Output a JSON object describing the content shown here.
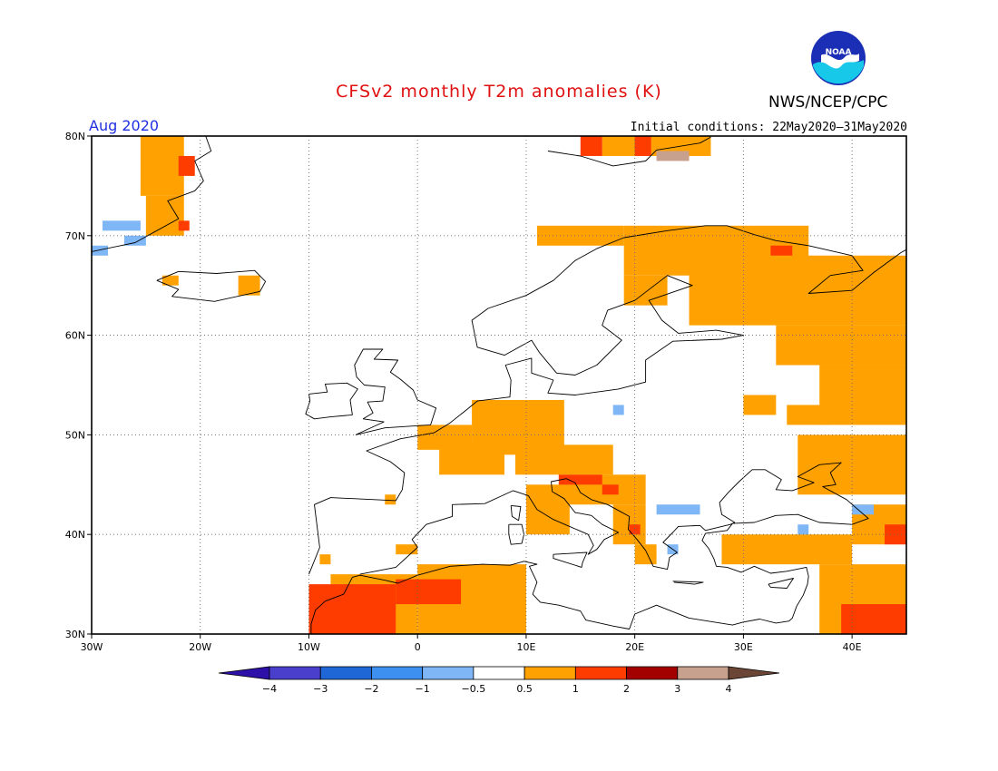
{
  "header": {
    "title": "CFSv2 monthly T2m anomalies (K)",
    "agency": "NWS/NCEP/CPC",
    "logo_text": "NOAA",
    "month": "Aug 2020",
    "initial_conditions": "Initial conditions: 22May2020–31May2020"
  },
  "map": {
    "lon_range": [
      -30,
      45
    ],
    "lat_range": [
      30,
      80
    ],
    "lon_ticks": [
      {
        "value": -30,
        "label": "30W"
      },
      {
        "value": -20,
        "label": "20W"
      },
      {
        "value": -10,
        "label": "10W"
      },
      {
        "value": 0,
        "label": "0"
      },
      {
        "value": 10,
        "label": "10E"
      },
      {
        "value": 20,
        "label": "20E"
      },
      {
        "value": 30,
        "label": "30E"
      },
      {
        "value": 40,
        "label": "40E"
      }
    ],
    "lat_ticks": [
      {
        "value": 30,
        "label": "30N"
      },
      {
        "value": 40,
        "label": "40N"
      },
      {
        "value": 50,
        "label": "50N"
      },
      {
        "value": 60,
        "label": "60N"
      },
      {
        "value": 70,
        "label": "70N"
      },
      {
        "value": 80,
        "label": "80N"
      }
    ],
    "grid": "dotted",
    "anomaly_regions": [
      {
        "cls": 6,
        "lon": [
          -25.5,
          -21.5
        ],
        "lat": [
          74,
          80
        ]
      },
      {
        "cls": 6,
        "lon": [
          -25,
          -21.5
        ],
        "lat": [
          70,
          74
        ]
      },
      {
        "cls": 7,
        "lon": [
          -22,
          -20.5
        ],
        "lat": [
          76,
          78
        ]
      },
      {
        "cls": 7,
        "lon": [
          -22,
          -21
        ],
        "lat": [
          70.5,
          71.5
        ]
      },
      {
        "cls": 4,
        "lon": [
          -29,
          -25.5
        ],
        "lat": [
          70.5,
          71.5
        ]
      },
      {
        "cls": 4,
        "lon": [
          -27,
          -25
        ],
        "lat": [
          69,
          70
        ]
      },
      {
        "cls": 4,
        "lon": [
          -30,
          -28.5
        ],
        "lat": [
          68,
          69
        ]
      },
      {
        "cls": 6,
        "lon": [
          -23.5,
          -22
        ],
        "lat": [
          65,
          66
        ]
      },
      {
        "cls": 6,
        "lon": [
          -16.5,
          -14.5
        ],
        "lat": [
          64,
          66
        ]
      },
      {
        "cls": 6,
        "lon": [
          17,
          27
        ],
        "lat": [
          78,
          80
        ]
      },
      {
        "cls": 7,
        "lon": [
          15,
          17
        ],
        "lat": [
          78,
          80
        ]
      },
      {
        "cls": 7,
        "lon": [
          20,
          21.5
        ],
        "lat": [
          78,
          80
        ]
      },
      {
        "cls": 9,
        "lon": [
          22,
          25
        ],
        "lat": [
          77.5,
          78.5
        ]
      },
      {
        "cls": 6,
        "lon": [
          11,
          19
        ],
        "lat": [
          69,
          71
        ]
      },
      {
        "cls": 6,
        "lon": [
          19,
          36
        ],
        "lat": [
          66,
          71
        ]
      },
      {
        "cls": 6,
        "lon": [
          19,
          23
        ],
        "lat": [
          63,
          66
        ]
      },
      {
        "cls": 6,
        "lon": [
          25,
          45
        ],
        "lat": [
          61,
          68
        ]
      },
      {
        "cls": 6,
        "lon": [
          33,
          45
        ],
        "lat": [
          57,
          61
        ]
      },
      {
        "cls": 7,
        "lon": [
          32.5,
          34.5
        ],
        "lat": [
          68,
          69
        ]
      },
      {
        "cls": 6,
        "lon": [
          37,
          45
        ],
        "lat": [
          51,
          57
        ]
      },
      {
        "cls": 6,
        "lon": [
          30,
          33
        ],
        "lat": [
          52,
          54
        ]
      },
      {
        "cls": 6,
        "lon": [
          34,
          38
        ],
        "lat": [
          51,
          53
        ]
      },
      {
        "cls": 6,
        "lon": [
          35,
          45
        ],
        "lat": [
          44,
          50
        ]
      },
      {
        "cls": 6,
        "lon": [
          40,
          45
        ],
        "lat": [
          39,
          43
        ]
      },
      {
        "cls": 6,
        "lon": [
          28,
          40
        ],
        "lat": [
          37,
          40
        ]
      },
      {
        "cls": 6,
        "lon": [
          37,
          45
        ],
        "lat": [
          30,
          37
        ]
      },
      {
        "cls": 7,
        "lon": [
          39,
          45
        ],
        "lat": [
          30,
          33
        ]
      },
      {
        "cls": 7,
        "lon": [
          43,
          45
        ],
        "lat": [
          39,
          41
        ]
      },
      {
        "cls": 4,
        "lon": [
          40,
          42
        ],
        "lat": [
          42,
          43
        ]
      },
      {
        "cls": 4,
        "lon": [
          35,
          36
        ],
        "lat": [
          40,
          41
        ]
      },
      {
        "cls": 6,
        "lon": [
          5,
          13.5
        ],
        "lat": [
          48,
          53.5
        ]
      },
      {
        "cls": 6,
        "lon": [
          0,
          5
        ],
        "lat": [
          48.5,
          51
        ]
      },
      {
        "cls": 6,
        "lon": [
          2,
          8
        ],
        "lat": [
          46,
          49
        ]
      },
      {
        "cls": 6,
        "lon": [
          9,
          18
        ],
        "lat": [
          46,
          49
        ]
      },
      {
        "cls": 6,
        "lon": [
          13,
          21
        ],
        "lat": [
          43,
          46
        ]
      },
      {
        "cls": 6,
        "lon": [
          10,
          14
        ],
        "lat": [
          40,
          45
        ]
      },
      {
        "cls": 6,
        "lon": [
          18,
          21
        ],
        "lat": [
          39,
          43
        ]
      },
      {
        "cls": 6,
        "lon": [
          20,
          22
        ],
        "lat": [
          37,
          39
        ]
      },
      {
        "cls": 7,
        "lon": [
          13,
          17
        ],
        "lat": [
          45,
          46
        ]
      },
      {
        "cls": 7,
        "lon": [
          17,
          18.5
        ],
        "lat": [
          44,
          45
        ]
      },
      {
        "cls": 7,
        "lon": [
          19.5,
          20.5
        ],
        "lat": [
          40,
          41
        ]
      },
      {
        "cls": 4,
        "lon": [
          22,
          26
        ],
        "lat": [
          42,
          43
        ]
      },
      {
        "cls": 4,
        "lon": [
          23,
          24
        ],
        "lat": [
          38,
          39
        ]
      },
      {
        "cls": 4,
        "lon": [
          18,
          19
        ],
        "lat": [
          52,
          53
        ]
      },
      {
        "cls": 6,
        "lon": [
          -8,
          0
        ],
        "lat": [
          30,
          36
        ]
      },
      {
        "cls": 6,
        "lon": [
          0,
          10
        ],
        "lat": [
          30,
          37
        ]
      },
      {
        "cls": 6,
        "lon": [
          -10,
          -7
        ],
        "lat": [
          30,
          33
        ]
      },
      {
        "cls": 7,
        "lon": [
          -10,
          -2
        ],
        "lat": [
          30,
          35
        ]
      },
      {
        "cls": 7,
        "lon": [
          -2,
          4
        ],
        "lat": [
          33,
          35.5
        ]
      },
      {
        "cls": 6,
        "lon": [
          -2,
          0
        ],
        "lat": [
          38,
          39
        ]
      },
      {
        "cls": 6,
        "lon": [
          -9,
          -8
        ],
        "lat": [
          37,
          38
        ]
      },
      {
        "cls": 6,
        "lon": [
          -3,
          -2
        ],
        "lat": [
          43,
          44
        ]
      }
    ]
  },
  "colorbar": {
    "bins": [
      {
        "label": "-4",
        "color": "#2c10a8"
      },
      {
        "label": "-3",
        "color": "#4a3fcc"
      },
      {
        "label": "-2",
        "color": "#1f66d6"
      },
      {
        "label": "-1",
        "color": "#3d8ff0"
      },
      {
        "label": "-0.5",
        "color": "#7eb6f6"
      },
      {
        "label": "0.5",
        "color": "#ffffff"
      },
      {
        "label": "1",
        "color": "#ffa100"
      },
      {
        "label": "2",
        "color": "#ff3c00"
      },
      {
        "label": "3",
        "color": "#a30000"
      },
      {
        "label": "4",
        "color": "#c8a08e"
      },
      {
        "label": "",
        "color": "#6b4636"
      }
    ]
  }
}
